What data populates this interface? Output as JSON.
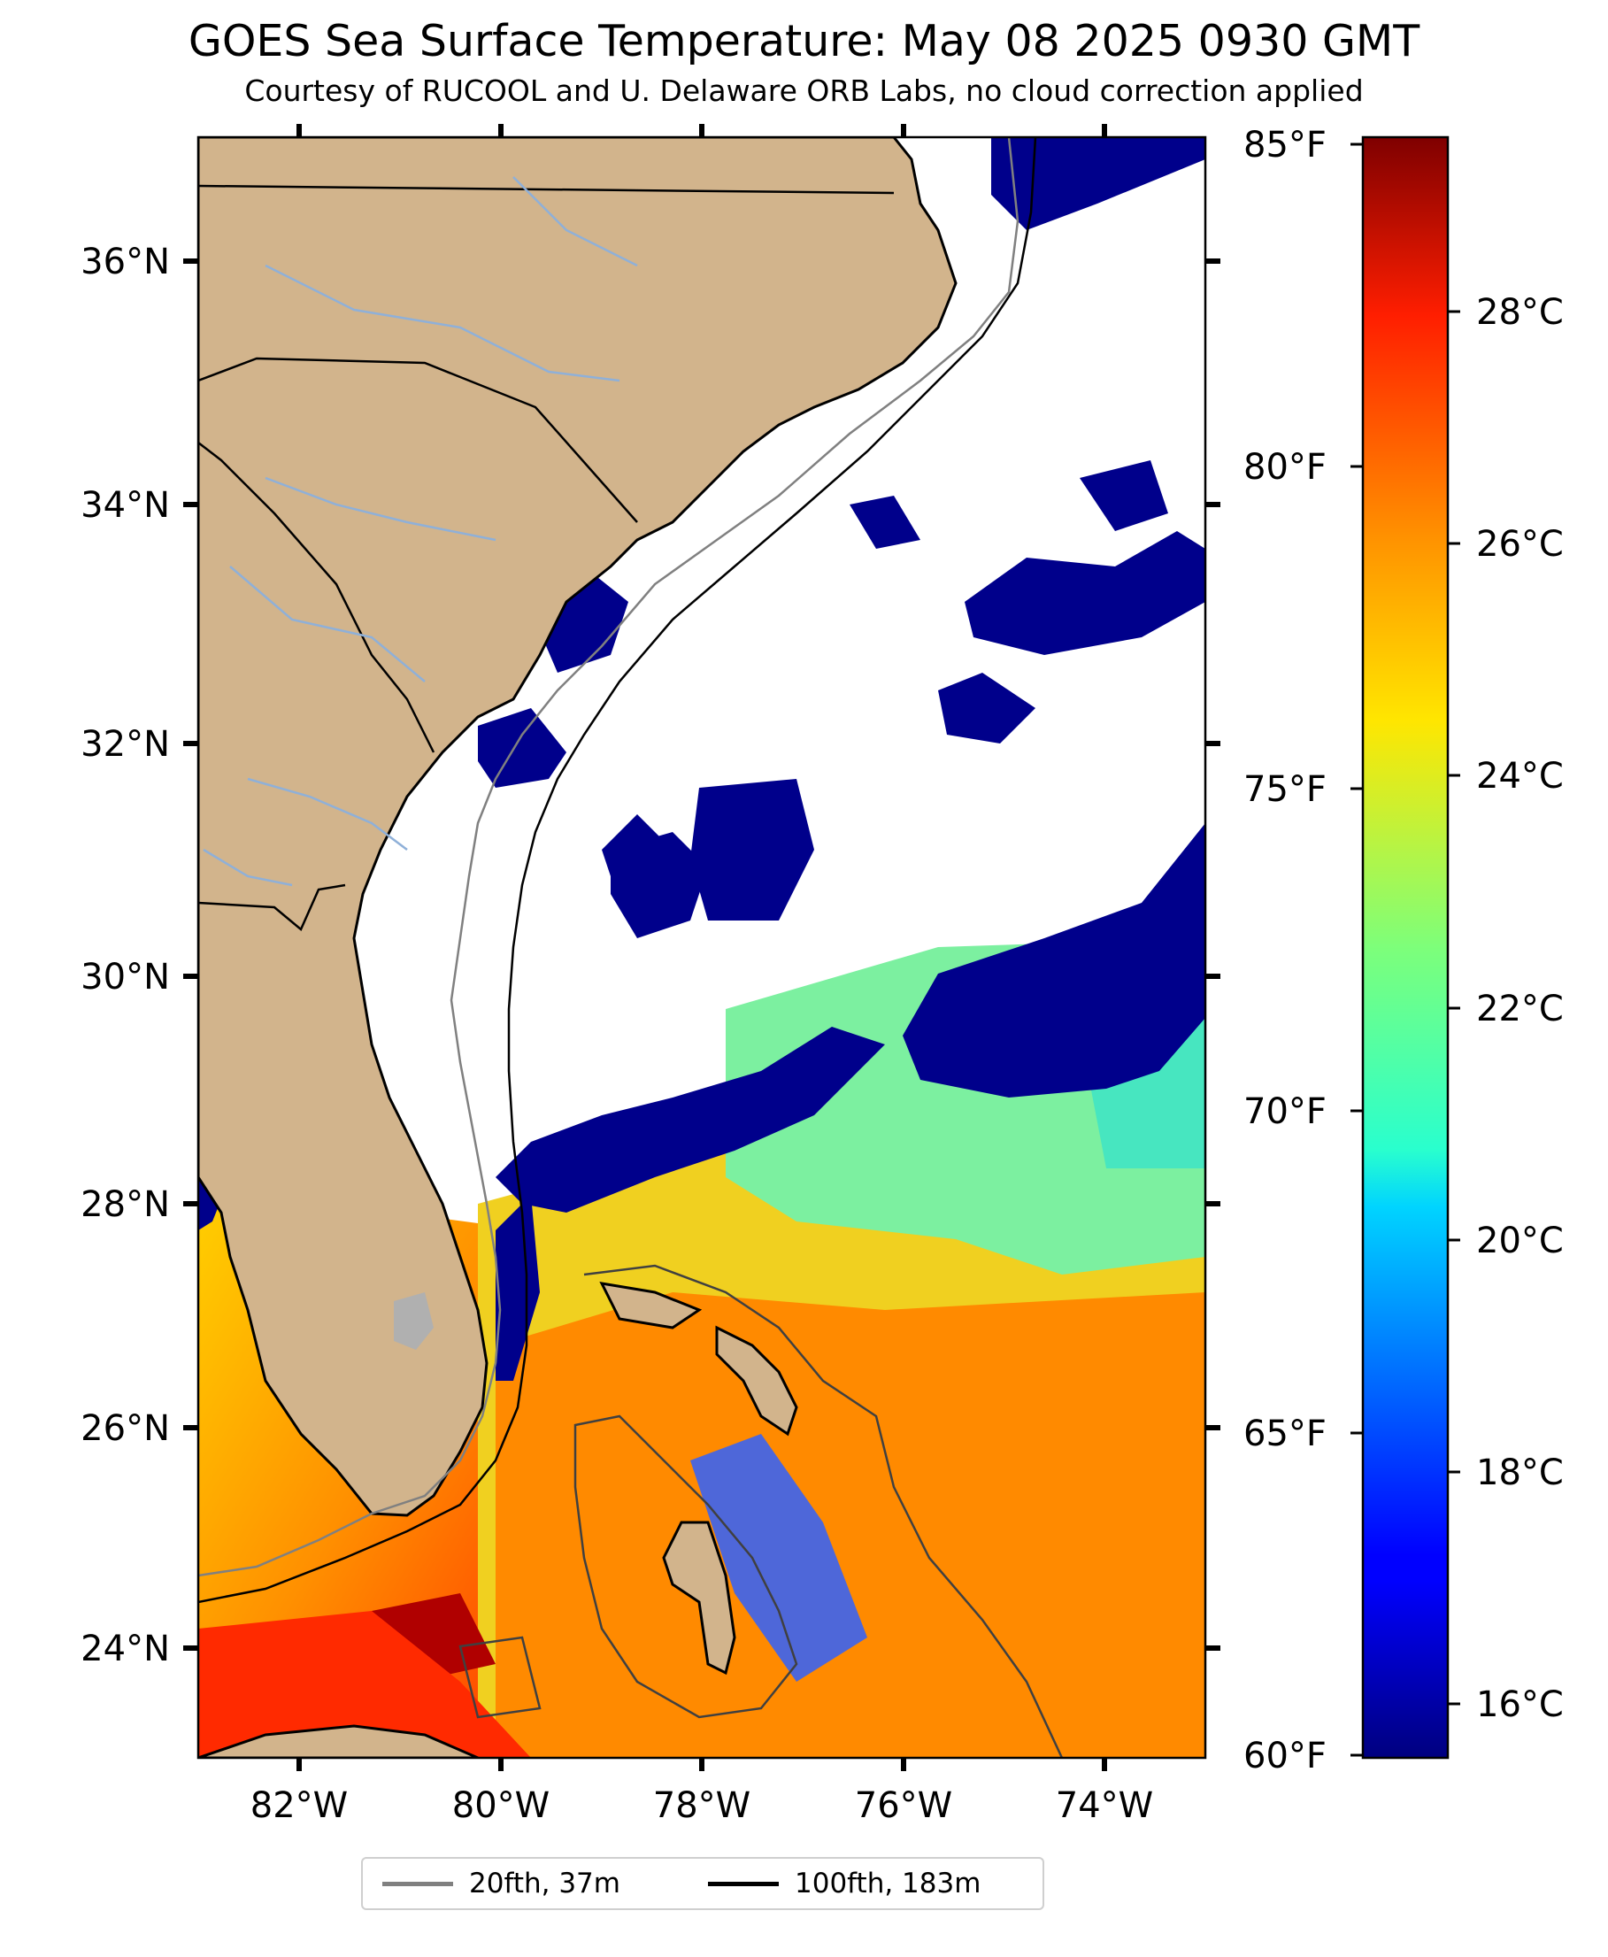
{
  "title": "GOES Sea Surface Temperature: May 08 2025 0930 GMT",
  "subtitle": "Courtesy of RUCOOL and U. Delaware ORB Labs, no cloud correction applied",
  "map": {
    "extent": {
      "lon": [
        -83,
        -73
      ],
      "lat": [
        23,
        37.2
      ]
    },
    "land_color": "#d2b48c",
    "cloud_color": "#ffffff",
    "cold_color": "#00008b",
    "lon_ticks": [
      "82°W",
      "80°W",
      "78°W",
      "76°W",
      "74°W"
    ],
    "lat_ticks": [
      "36°N",
      "34°N",
      "32°N",
      "30°N",
      "28°N",
      "26°N",
      "24°N"
    ],
    "fahrenheit_ticks": [
      "85°F",
      "80°F",
      "75°F",
      "70°F",
      "65°F",
      "60°F"
    ],
    "celsius_ticks": [
      "28°C",
      "26°C",
      "24°C",
      "22°C",
      "20°C",
      "18°C",
      "16°C"
    ],
    "colorbar_range_c": [
      15.56,
      29.44
    ],
    "colormap": "jet"
  },
  "legend": {
    "items": [
      {
        "label": "20fth, 37m",
        "color": "#808080"
      },
      {
        "label": "100fth, 183m",
        "color": "#000000"
      }
    ]
  }
}
